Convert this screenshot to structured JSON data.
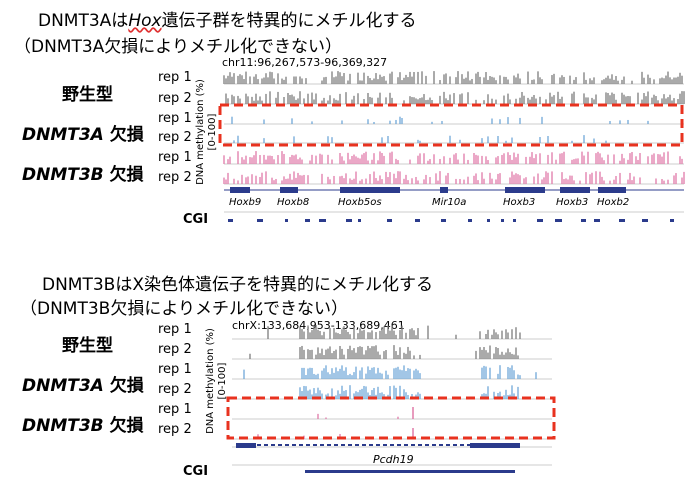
{
  "colors": {
    "wt": "#7c7c7c",
    "dnmt3a": "#6fa7d8",
    "dnmt3b": "#e07aa9",
    "dashed_box": "#e8321f",
    "gene": "#2b3b8c",
    "cgi": "#2b3b8c"
  },
  "panel1": {
    "title_pre": "DNMT3Aは",
    "title_gene": "Hox",
    "title_post": "遺伝子群を特異的にメチル化する",
    "subtitle": "（DNMT3A欠損によりメチル化できない）",
    "coord": "chr11:96,267,573-96,369,327",
    "wt_label": "野生型",
    "a_gene": "DNMT3A",
    "a_suffix": " 欠損",
    "b_gene": "DNMT3B",
    "b_suffix": " 欠損",
    "rep1": "rep 1",
    "rep2": "rep 2",
    "ylabel_line1": "DNA methylation (%)",
    "ylabel_line2": "[0-100]",
    "genes": [
      "Hoxb9",
      "Hoxb8",
      "Hoxb5os",
      "Mir10a",
      "Hoxb3",
      "Hoxb3",
      "Hoxb2"
    ],
    "cgi_label": "CGI"
  },
  "panel2": {
    "title": "DNMT3BはX染色体遺伝子を特異的にメチル化する",
    "subtitle": "（DNMT3B欠損によりメチル化できない）",
    "coord": "chrX:133,684,953-133,689,461",
    "wt_label": "野生型",
    "a_gene": "DNMT3A",
    "a_suffix": " 欠損",
    "b_gene": "DNMT3B",
    "b_suffix": " 欠損",
    "rep1": "rep 1",
    "rep2": "rep 2",
    "ylabel_line1": "DNA methylation (%)",
    "ylabel_line2": "[0-100]",
    "gene": "Pcdh19",
    "cgi_label": "CGI"
  }
}
